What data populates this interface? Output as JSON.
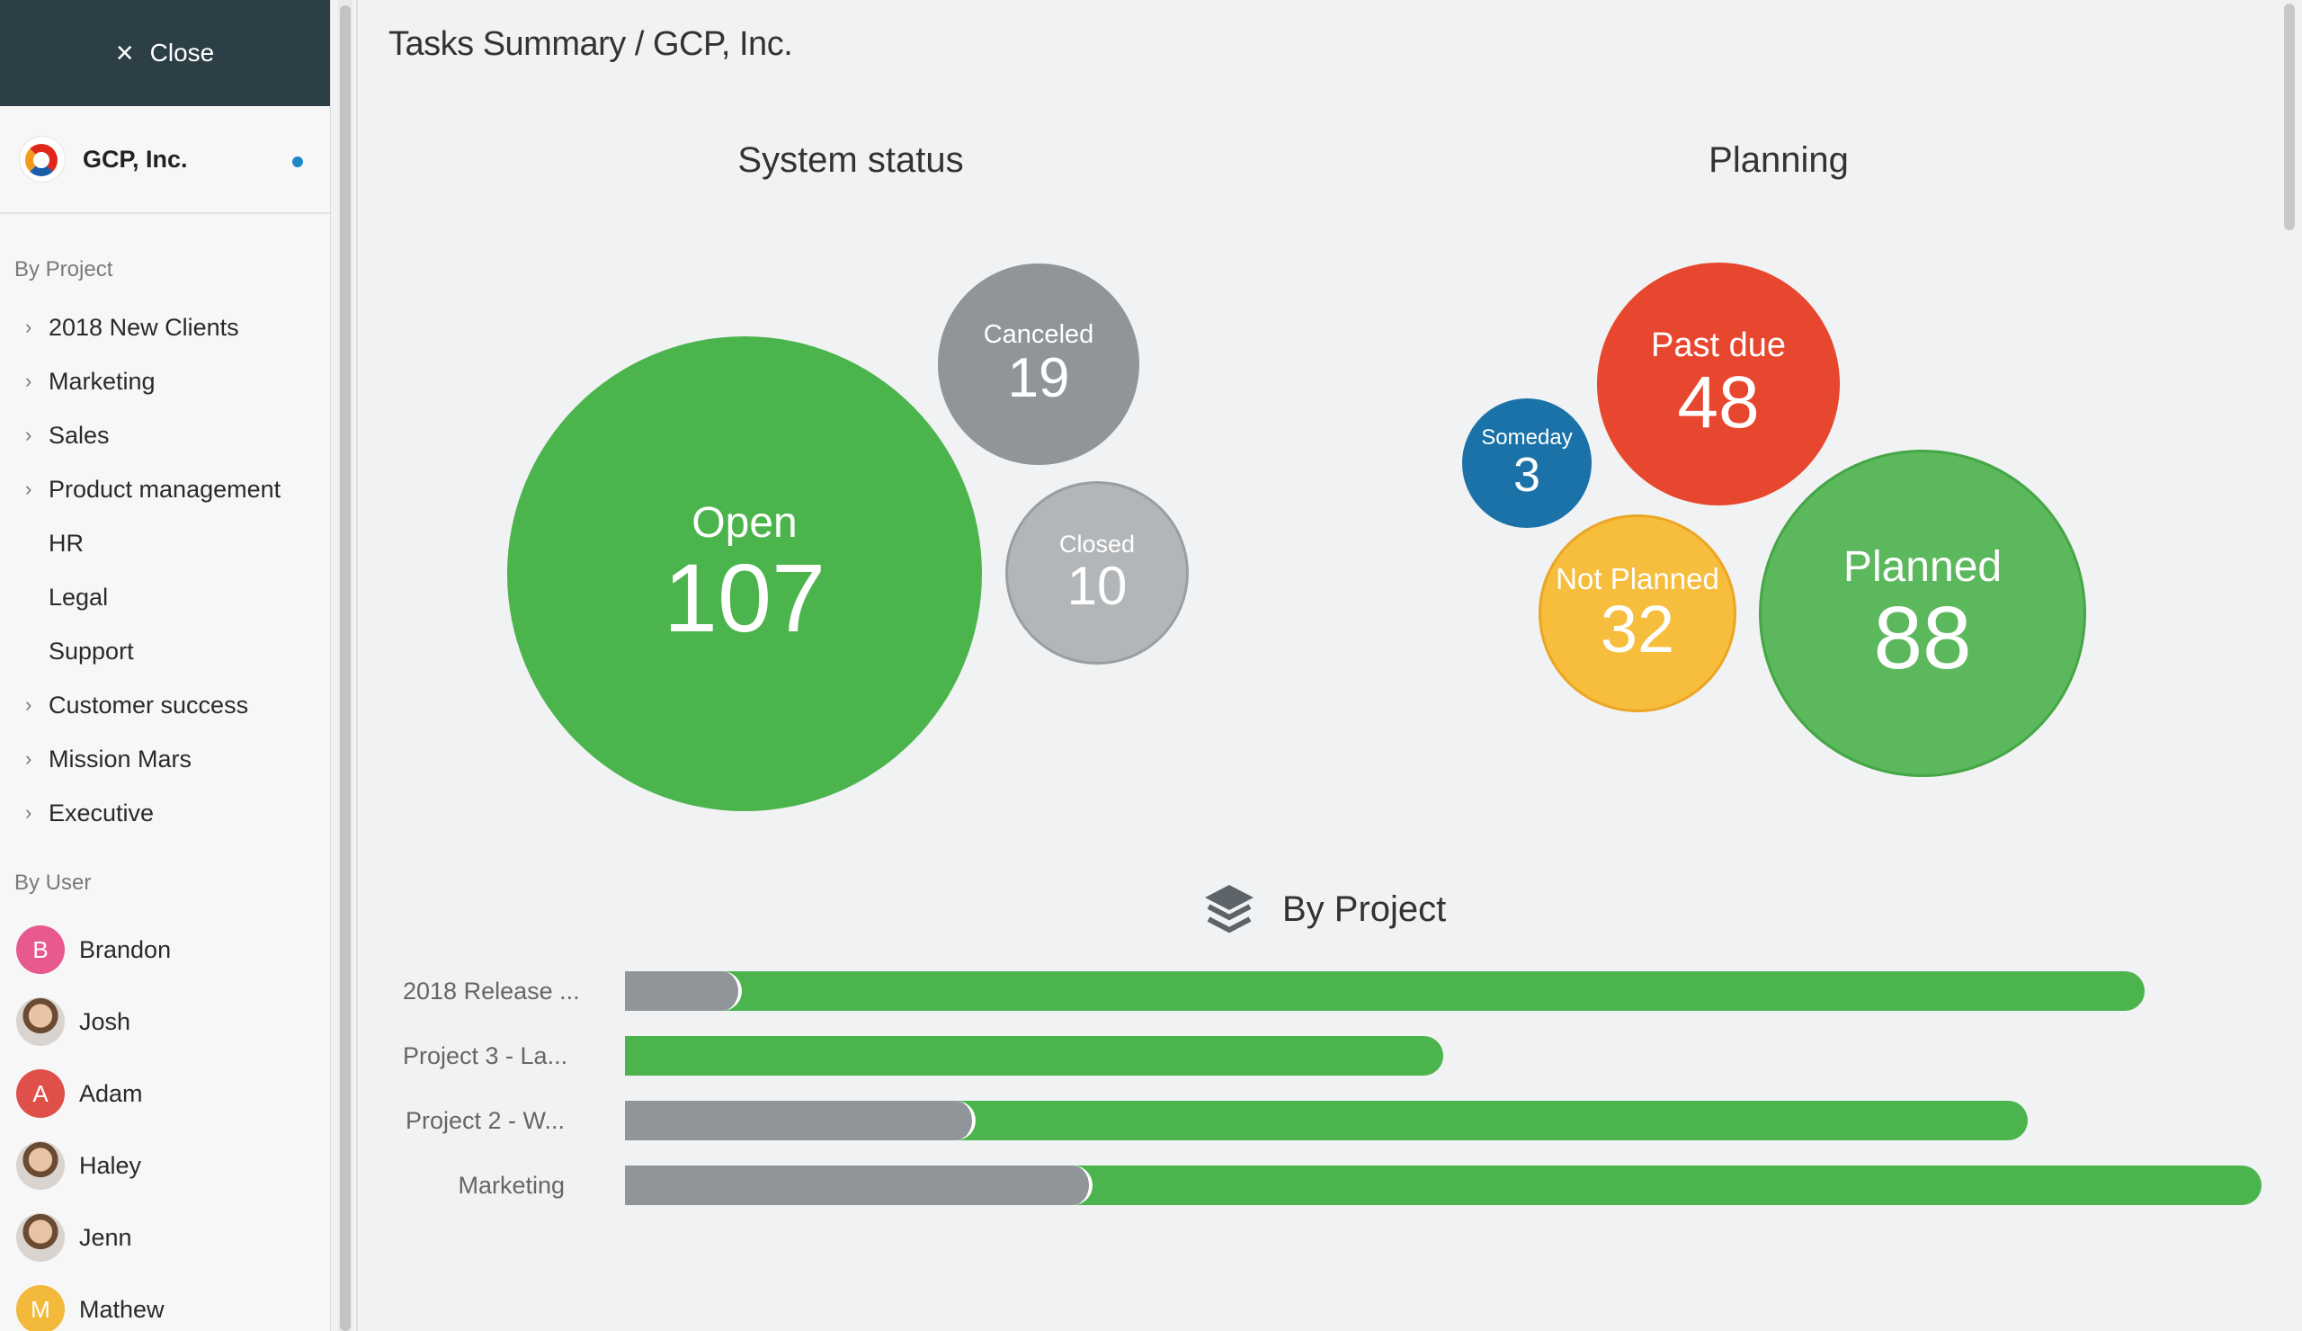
{
  "sidebar": {
    "close_label": "Close",
    "org_name": "GCP, Inc.",
    "by_project_title": "By Project",
    "projects": [
      {
        "label": "2018 New Clients",
        "expandable": true
      },
      {
        "label": "Marketing",
        "expandable": true
      },
      {
        "label": "Sales",
        "expandable": true
      },
      {
        "label": "Product management",
        "expandable": true
      },
      {
        "label": "HR",
        "expandable": false
      },
      {
        "label": "Legal",
        "expandable": false
      },
      {
        "label": "Support",
        "expandable": false
      },
      {
        "label": "Customer success",
        "expandable": true
      },
      {
        "label": "Mission Mars",
        "expandable": true
      },
      {
        "label": "Executive",
        "expandable": true
      }
    ],
    "by_user_title": "By User",
    "users": [
      {
        "name": "Brandon",
        "initial": "B",
        "color": "#e85a8f"
      },
      {
        "name": "Josh",
        "initial": "",
        "color": "#b7b2ad"
      },
      {
        "name": "Adam",
        "initial": "A",
        "color": "#e0504a"
      },
      {
        "name": "Haley",
        "initial": "",
        "color": "#a57b5b"
      },
      {
        "name": "Jenn",
        "initial": "",
        "color": "#8a6a55"
      },
      {
        "name": "Mathew",
        "initial": "M",
        "color": "#f2b93b"
      }
    ]
  },
  "main": {
    "title": "Tasks Summary / GCP, Inc.",
    "system_status_title": "System status",
    "planning_title": "Planning",
    "by_project_title": "By Project"
  },
  "chart_data": [
    {
      "type": "bubble",
      "title": "System status",
      "items": [
        {
          "label": "Open",
          "value": 107,
          "color": "#4cb44c"
        },
        {
          "label": "Canceled",
          "value": 19,
          "color": "#8f9599"
        },
        {
          "label": "Closed",
          "value": 10,
          "color": "#b3b6b8"
        }
      ]
    },
    {
      "type": "bubble",
      "title": "Planning",
      "items": [
        {
          "label": "Past due",
          "value": 48,
          "color": "#e8472f"
        },
        {
          "label": "Someday",
          "value": 3,
          "color": "#1a72a8"
        },
        {
          "label": "Not Planned",
          "value": 32,
          "color": "#f7bd3d"
        },
        {
          "label": "Planned",
          "value": 88,
          "color": "#5cb85c"
        }
      ]
    },
    {
      "type": "bar",
      "title": "By Project",
      "categories": [
        "2018 Release ...",
        "Project 3 - La...",
        "Project 2 - W...",
        "Marketing"
      ],
      "series": [
        {
          "values": [
            14,
            0,
            42,
            56
          ],
          "color": "#8f9599"
        },
        {
          "values": [
            168,
            98,
            126,
            140
          ],
          "color": "#4cb44c"
        }
      ]
    }
  ]
}
